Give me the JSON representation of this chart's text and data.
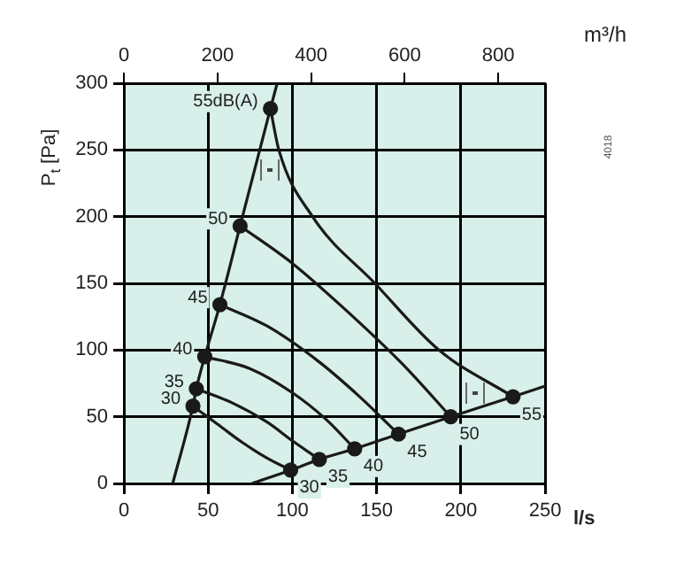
{
  "chart_data": {
    "type": "line",
    "xlabel": "l/s",
    "ylabel": "P$_{t}$ [Pa]",
    "x2label": "m³/h",
    "xlim": [
      0,
      250
    ],
    "xticks": [
      0,
      50,
      100,
      150,
      200,
      250
    ],
    "ylim": [
      0,
      300
    ],
    "yticks": [
      0,
      50,
      100,
      150,
      200,
      250,
      300
    ],
    "x2lim": [
      0,
      900
    ],
    "x2ticks": [
      0,
      200,
      400,
      600,
      800
    ],
    "grid": true,
    "legend": false,
    "marker": "none",
    "series": [
      {
        "color": "#1a1a1a",
        "x": [
          29,
          41,
          43,
          48,
          57,
          69,
          87,
          91
        ],
        "values": [
          0,
          58,
          71,
          95,
          134,
          193,
          281,
          300
        ]
      },
      {
        "color": "#1a1a1a",
        "x": [
          76,
          99,
          116,
          137,
          163,
          194,
          231,
          250
        ],
        "values": [
          0,
          10,
          18,
          26,
          37,
          50,
          65,
          73
        ]
      },
      {
        "color": "#1a1a1a",
        "x": [
          41,
          55,
          70,
          85,
          99
        ],
        "values": [
          58,
          45,
          31,
          19,
          10
        ]
      },
      {
        "color": "#1a1a1a",
        "x": [
          43,
          65,
          85,
          100,
          116
        ],
        "values": [
          71,
          60,
          46,
          32,
          18
        ]
      },
      {
        "color": "#1a1a1a",
        "x": [
          48,
          75,
          100,
          120,
          137
        ],
        "values": [
          95,
          86,
          68,
          48,
          26
        ]
      },
      {
        "color": "#1a1a1a",
        "x": [
          57,
          85,
          115,
          140,
          163
        ],
        "values": [
          134,
          118,
          92,
          65,
          37
        ]
      },
      {
        "color": "#1a1a1a",
        "x": [
          69,
          100,
          130,
          165,
          194
        ],
        "values": [
          193,
          165,
          132,
          90,
          50
        ]
      },
      {
        "color": "#1a1a1a",
        "x": [
          87,
          92,
          112,
          149,
          187,
          231
        ],
        "values": [
          281,
          250,
          200,
          150,
          100,
          65
        ]
      },
      {
        "type": "scatter",
        "marker": "circle",
        "color": "#1a1a1a",
        "x": [
          41,
          43,
          48,
          57,
          69,
          87,
          99,
          116,
          137,
          163,
          194,
          231
        ],
        "values": [
          58,
          71,
          95,
          134,
          193,
          281,
          10,
          18,
          26,
          37,
          50,
          65
        ]
      }
    ],
    "annotations": [
      {
        "text": "55dB(A)",
        "x": 87,
        "y": 281
      },
      {
        "text": "50",
        "x": 69,
        "y": 193
      },
      {
        "text": "45",
        "x": 57,
        "y": 134
      },
      {
        "text": "40",
        "x": 48,
        "y": 95
      },
      {
        "text": "35",
        "x": 43,
        "y": 71
      },
      {
        "text": "30",
        "x": 41,
        "y": 58
      },
      {
        "text": "30",
        "x": 99,
        "y": 10
      },
      {
        "text": "35",
        "x": 116,
        "y": 18
      },
      {
        "text": "40",
        "x": 137,
        "y": 26
      },
      {
        "text": "45",
        "x": 163,
        "y": 37
      },
      {
        "text": "50",
        "x": 194,
        "y": 50
      },
      {
        "text": "55",
        "x": 231,
        "y": 65
      },
      "4018"
    ]
  }
}
